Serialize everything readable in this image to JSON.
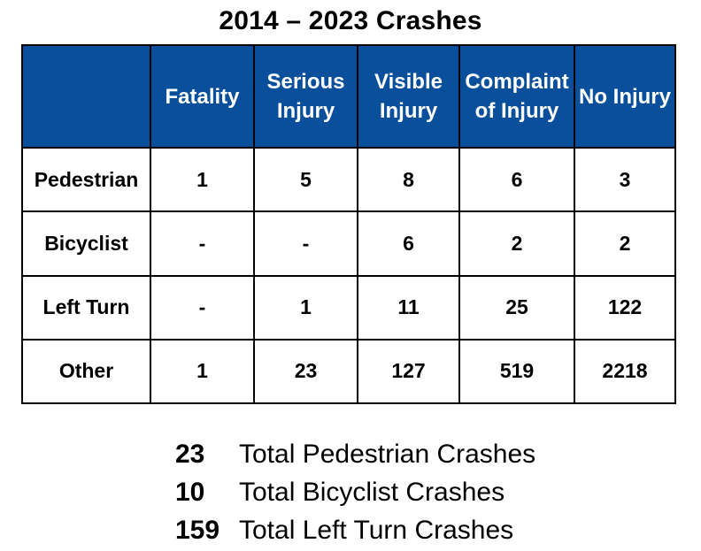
{
  "title": "2014 – 2023 Crashes",
  "table": {
    "corner_label": "",
    "headers": [
      "Fatality",
      "Serious Injury",
      "Visible Injury",
      "Complaint of Injury",
      "No Injury"
    ],
    "rows": [
      {
        "label": "Pedestrian",
        "cells": [
          "1",
          "5",
          "8",
          "6",
          "3"
        ]
      },
      {
        "label": "Bicyclist",
        "cells": [
          "-",
          "-",
          "6",
          "2",
          "2"
        ]
      },
      {
        "label": "Left Turn",
        "cells": [
          "-",
          "1",
          "11",
          "25",
          "122"
        ]
      },
      {
        "label": "Other",
        "cells": [
          "1",
          "23",
          "127",
          "519",
          "2218"
        ]
      }
    ],
    "header_bg_color": "#0a4f9c",
    "header_text_color": "#ffffff"
  },
  "totals": [
    {
      "number": "23",
      "label": "Total Pedestrian Crashes"
    },
    {
      "number": "10",
      "label": "Total Bicyclist Crashes"
    },
    {
      "number": "159",
      "label": "Total Left Turn Crashes"
    }
  ]
}
